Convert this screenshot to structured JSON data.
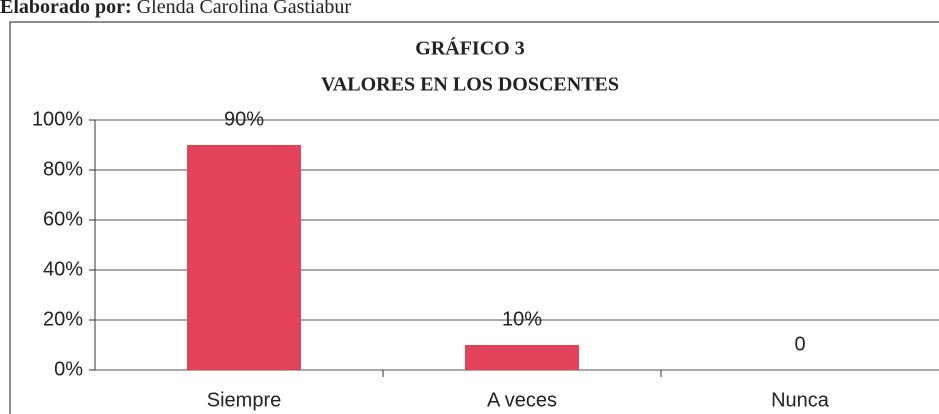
{
  "chart_data": {
    "type": "bar",
    "caption_label": "Elaborado por:",
    "caption_name": "Glenda Carolina Gastiabur",
    "title": [
      "GRÁFICO 3",
      "VALORES EN LOS DOSCENTES"
    ],
    "categories": [
      "Siempre",
      "A veces",
      "Nunca"
    ],
    "values": [
      90,
      10,
      0
    ],
    "value_labels": [
      "90%",
      "10%",
      "0"
    ],
    "color": "#e2435a",
    "ylim": [
      0,
      100
    ],
    "yticks": [
      {
        "value": 0,
        "label": "0%"
      },
      {
        "value": 20,
        "label": "20%"
      },
      {
        "value": 40,
        "label": "40%"
      },
      {
        "value": 60,
        "label": "60%"
      },
      {
        "value": 80,
        "label": "80%"
      },
      {
        "value": 100,
        "label": "100%"
      }
    ],
    "grid": true
  }
}
